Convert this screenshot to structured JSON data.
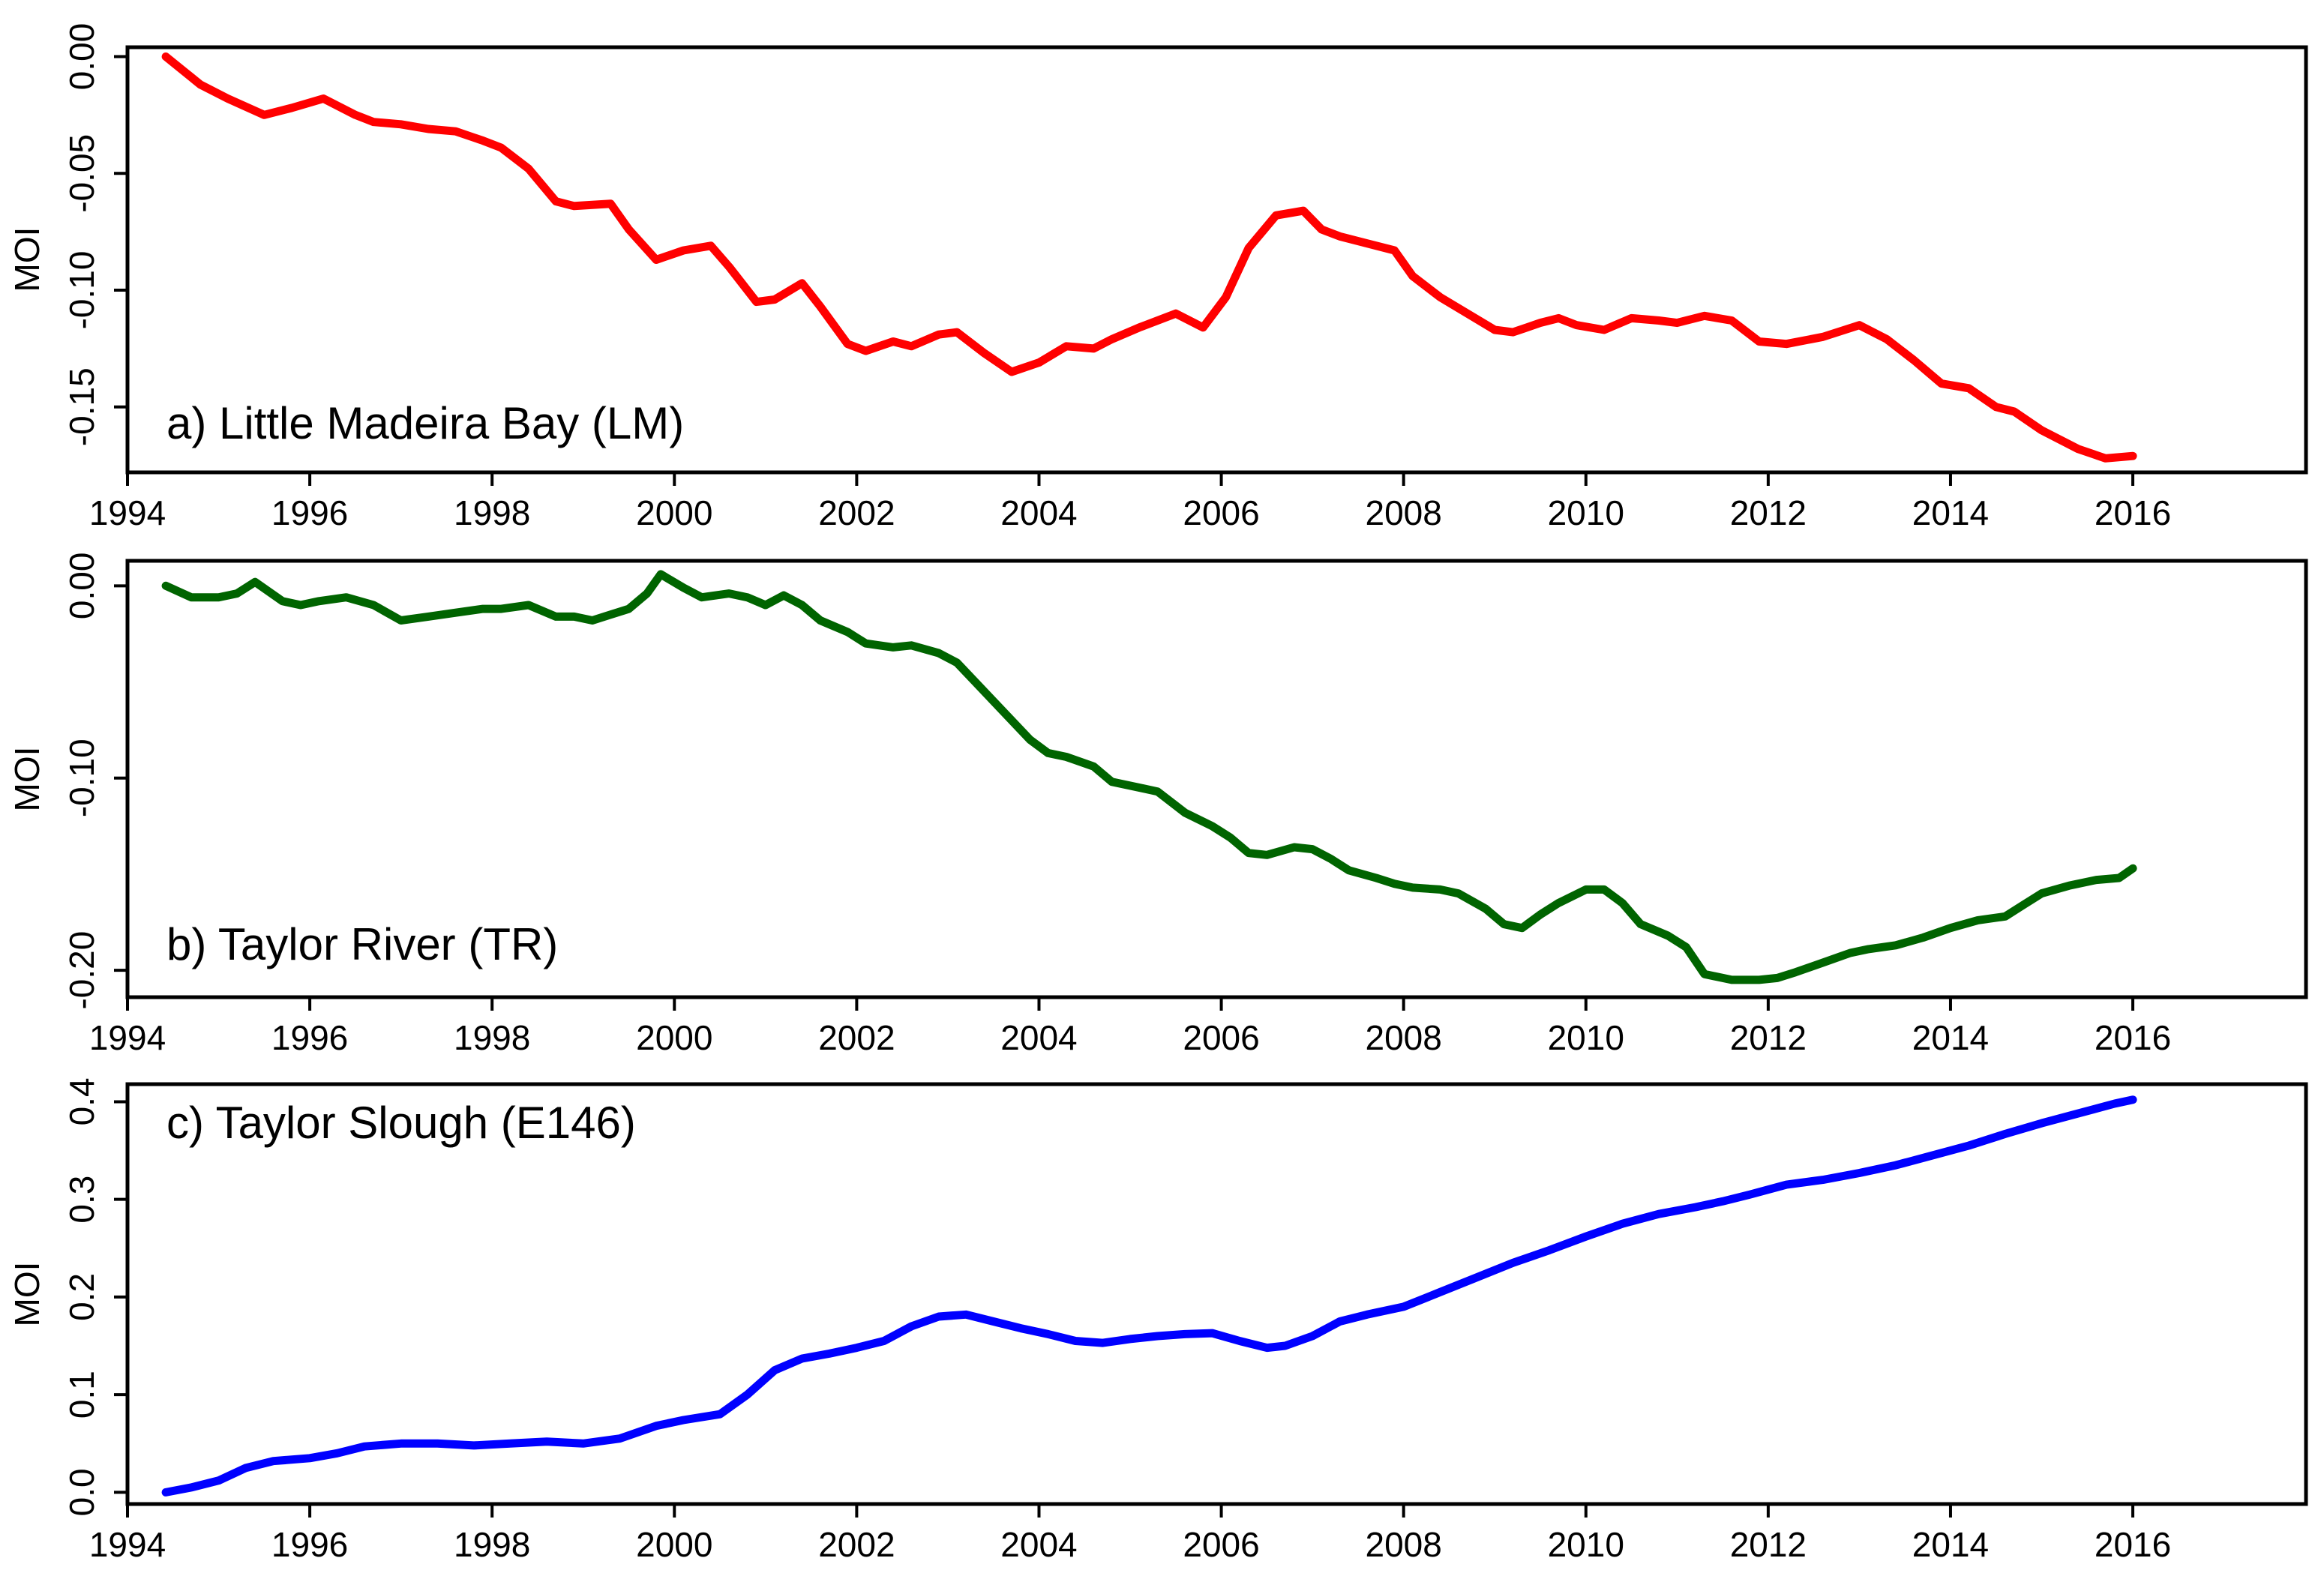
{
  "chart_data": [
    {
      "type": "line",
      "title": "a) Little Madeira Bay (LM)",
      "xlabel": "",
      "ylabel": "MOI",
      "xlim": [
        1994,
        2017.9
      ],
      "ylim": [
        -0.178,
        0.004
      ],
      "xticks": [
        "1994",
        "1996",
        "1998",
        "2000",
        "2002",
        "2004",
        "2006",
        "2008",
        "2010",
        "2012",
        "2014",
        "2016"
      ],
      "yticks": [
        "0.00",
        "-0.05",
        "-0.10",
        "-0.15"
      ],
      "grid": false,
      "series": [
        {
          "name": "Little Madeira Bay (LM)",
          "color": "#ff0000",
          "x": [
            1994.42,
            1994.8,
            1995.1,
            1995.5,
            1995.8,
            1996.15,
            1996.5,
            1996.7,
            1997.0,
            1997.3,
            1997.6,
            1997.9,
            1998.1,
            1998.4,
            1998.7,
            1998.9,
            1999.3,
            1999.5,
            1999.8,
            2000.1,
            2000.4,
            2000.6,
            2000.9,
            2001.1,
            2001.4,
            2001.6,
            2001.9,
            2002.1,
            2002.4,
            2002.6,
            2002.9,
            2003.1,
            2003.4,
            2003.7,
            2004.0,
            2004.3,
            2004.6,
            2004.8,
            2005.1,
            2005.5,
            2005.8,
            2006.05,
            2006.3,
            2006.6,
            2006.9,
            2007.1,
            2007.3,
            2007.6,
            2007.9,
            2008.1,
            2008.4,
            2008.7,
            2009.0,
            2009.2,
            2009.5,
            2009.7,
            2009.9,
            2010.2,
            2010.5,
            2010.8,
            2011.0,
            2011.3,
            2011.6,
            2011.9,
            2012.2,
            2012.6,
            2013.0,
            2013.3,
            2013.6,
            2013.9,
            2014.2,
            2014.5,
            2014.7,
            2015.0,
            2015.4,
            2015.7,
            2016.0
          ],
          "y": [
            0.0,
            -0.012,
            -0.018,
            -0.025,
            -0.022,
            -0.018,
            -0.025,
            -0.028,
            -0.029,
            -0.031,
            -0.032,
            -0.036,
            -0.039,
            -0.048,
            -0.062,
            -0.064,
            -0.063,
            -0.074,
            -0.087,
            -0.083,
            -0.081,
            -0.09,
            -0.105,
            -0.104,
            -0.097,
            -0.107,
            -0.123,
            -0.126,
            -0.122,
            -0.124,
            -0.119,
            -0.118,
            -0.127,
            -0.135,
            -0.131,
            -0.124,
            -0.125,
            -0.121,
            -0.116,
            -0.11,
            -0.116,
            -0.103,
            -0.082,
            -0.068,
            -0.066,
            -0.074,
            -0.077,
            -0.08,
            -0.083,
            -0.094,
            -0.103,
            -0.11,
            -0.117,
            -0.118,
            -0.114,
            -0.112,
            -0.115,
            -0.117,
            -0.112,
            -0.113,
            -0.114,
            -0.111,
            -0.113,
            -0.122,
            -0.123,
            -0.12,
            -0.115,
            -0.121,
            -0.13,
            -0.14,
            -0.142,
            -0.15,
            -0.152,
            -0.16,
            -0.168,
            -0.172,
            -0.171
          ]
        }
      ]
    },
    {
      "type": "line",
      "title": "b) Taylor River (TR)",
      "xlabel": "",
      "ylabel": "MOI",
      "xlim": [
        1994,
        2017.9
      ],
      "ylim": [
        -0.214,
        0.013
      ],
      "xticks": [
        "1994",
        "1996",
        "1998",
        "2000",
        "2002",
        "2004",
        "2006",
        "2008",
        "2010",
        "2012",
        "2014",
        "2016"
      ],
      "yticks": [
        "0.00",
        "-0.10",
        "-0.20"
      ],
      "grid": false,
      "series": [
        {
          "name": "Taylor River (TR)",
          "color": "#006400",
          "x": [
            1994.42,
            1994.7,
            1995.0,
            1995.2,
            1995.4,
            1995.7,
            1995.9,
            1996.1,
            1996.4,
            1996.7,
            1997.0,
            1997.3,
            1997.6,
            1997.9,
            1998.1,
            1998.4,
            1998.7,
            1998.9,
            1999.1,
            1999.3,
            1999.5,
            1999.7,
            1999.85,
            2000.1,
            2000.3,
            2000.6,
            2000.8,
            2001.0,
            2001.2,
            2001.4,
            2001.6,
            2001.9,
            2002.1,
            2002.4,
            2002.6,
            2002.9,
            2003.1,
            2003.3,
            2003.6,
            2003.9,
            2004.1,
            2004.3,
            2004.6,
            2004.8,
            2005.1,
            2005.3,
            2005.6,
            2005.9,
            2006.1,
            2006.3,
            2006.5,
            2006.8,
            2007.0,
            2007.2,
            2007.4,
            2007.7,
            2007.9,
            2008.1,
            2008.4,
            2008.6,
            2008.9,
            2009.1,
            2009.3,
            2009.5,
            2009.7,
            2010.0,
            2010.2,
            2010.4,
            2010.6,
            2010.9,
            2011.1,
            2011.3,
            2011.6,
            2011.9,
            2012.1,
            2012.3,
            2012.6,
            2012.9,
            2013.1,
            2013.4,
            2013.7,
            2014.0,
            2014.3,
            2014.6,
            2014.8,
            2015.0,
            2015.3,
            2015.6,
            2015.85,
            2016.0
          ],
          "y": [
            0.0,
            -0.006,
            -0.006,
            -0.004,
            0.002,
            -0.008,
            -0.01,
            -0.008,
            -0.006,
            -0.01,
            -0.018,
            -0.016,
            -0.014,
            -0.012,
            -0.012,
            -0.01,
            -0.016,
            -0.016,
            -0.018,
            -0.015,
            -0.012,
            -0.004,
            0.006,
            -0.001,
            -0.006,
            -0.004,
            -0.006,
            -0.01,
            -0.005,
            -0.01,
            -0.018,
            -0.024,
            -0.03,
            -0.032,
            -0.031,
            -0.035,
            -0.04,
            -0.05,
            -0.065,
            -0.08,
            -0.087,
            -0.089,
            -0.094,
            -0.102,
            -0.105,
            -0.107,
            -0.118,
            -0.125,
            -0.131,
            -0.139,
            -0.14,
            -0.136,
            -0.137,
            -0.142,
            -0.148,
            -0.152,
            -0.155,
            -0.157,
            -0.158,
            -0.16,
            -0.168,
            -0.176,
            -0.178,
            -0.171,
            -0.165,
            -0.158,
            -0.158,
            -0.165,
            -0.176,
            -0.182,
            -0.188,
            -0.202,
            -0.205,
            -0.205,
            -0.204,
            -0.201,
            -0.196,
            -0.191,
            -0.189,
            -0.187,
            -0.183,
            -0.178,
            -0.174,
            -0.172,
            -0.166,
            -0.16,
            -0.156,
            -0.153,
            -0.152,
            -0.147
          ]
        }
      ]
    },
    {
      "type": "line",
      "title": "c) Taylor Slough (E146)",
      "xlabel": "",
      "ylabel": "MOI",
      "xlim": [
        1994,
        2017.9
      ],
      "ylim": [
        -0.012,
        0.418
      ],
      "xticks": [
        "1994",
        "1996",
        "1998",
        "2000",
        "2002",
        "2004",
        "2006",
        "2008",
        "2010",
        "2012",
        "2014",
        "2016"
      ],
      "yticks": [
        "0.0",
        "0.1",
        "0.2",
        "0.3",
        "0.4"
      ],
      "grid": false,
      "series": [
        {
          "name": "Taylor Slough (E146)",
          "color": "#0000ff",
          "x": [
            1994.42,
            1994.7,
            1995.0,
            1995.3,
            1995.6,
            1996.0,
            1996.3,
            1996.6,
            1997.0,
            1997.4,
            1997.8,
            1998.2,
            1998.6,
            1999.0,
            1999.4,
            1999.8,
            2000.1,
            2000.5,
            2000.8,
            2001.1,
            2001.4,
            2001.7,
            2002.0,
            2002.3,
            2002.6,
            2002.9,
            2003.2,
            2003.5,
            2003.8,
            2004.1,
            2004.4,
            2004.7,
            2005.0,
            2005.3,
            2005.6,
            2005.9,
            2006.2,
            2006.5,
            2006.7,
            2007.0,
            2007.3,
            2007.6,
            2008.0,
            2008.4,
            2008.8,
            2009.2,
            2009.6,
            2010.0,
            2010.4,
            2010.8,
            2011.2,
            2011.5,
            2011.8,
            2012.2,
            2012.6,
            2013.0,
            2013.4,
            2013.8,
            2014.2,
            2014.6,
            2015.0,
            2015.4,
            2015.8,
            2016.0
          ],
          "y": [
            0.0,
            0.005,
            0.012,
            0.025,
            0.032,
            0.035,
            0.04,
            0.047,
            0.05,
            0.05,
            0.048,
            0.05,
            0.052,
            0.05,
            0.055,
            0.068,
            0.074,
            0.08,
            0.1,
            0.125,
            0.137,
            0.142,
            0.148,
            0.155,
            0.17,
            0.18,
            0.182,
            0.175,
            0.168,
            0.162,
            0.155,
            0.153,
            0.157,
            0.16,
            0.162,
            0.163,
            0.155,
            0.148,
            0.15,
            0.16,
            0.175,
            0.182,
            0.19,
            0.205,
            0.22,
            0.235,
            0.248,
            0.262,
            0.275,
            0.285,
            0.292,
            0.298,
            0.305,
            0.315,
            0.32,
            0.327,
            0.335,
            0.345,
            0.355,
            0.367,
            0.378,
            0.388,
            0.398,
            0.402
          ]
        }
      ]
    }
  ]
}
